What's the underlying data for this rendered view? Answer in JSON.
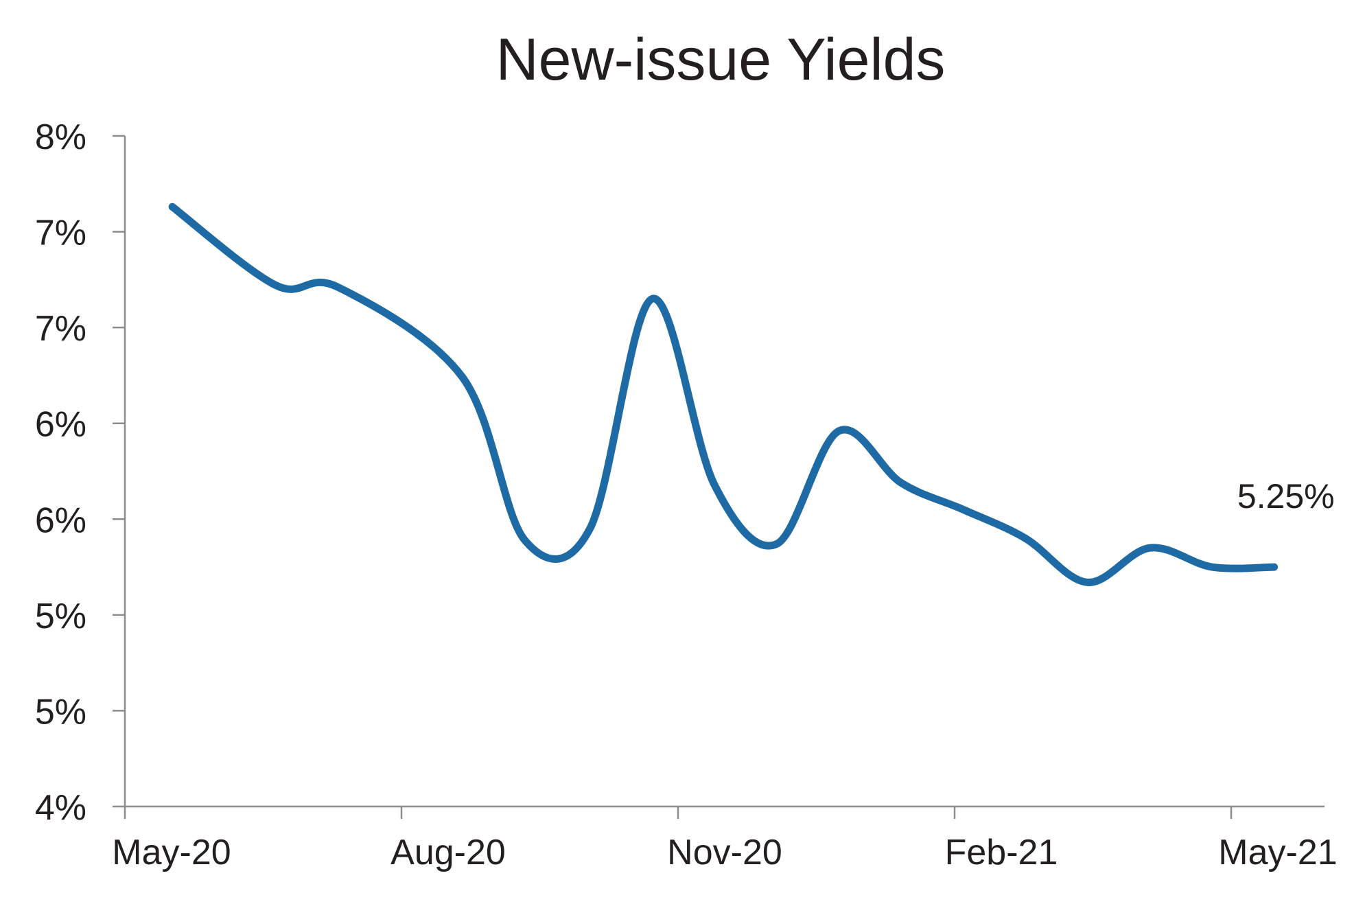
{
  "chart_data": {
    "type": "line",
    "title": "New-issue Yields",
    "xlabel": "",
    "ylabel": "",
    "y_tick_labels": [
      "8%",
      "7%",
      "7%",
      "6%",
      "6%",
      "5%",
      "5%",
      "4%"
    ],
    "ylim": [
      4.0,
      7.5
    ],
    "x_tick_labels": [
      "May-20",
      "Aug-20",
      "Nov-20",
      "Feb-21",
      "May-21"
    ],
    "xlim": [
      "2020-05-01",
      "2021-06-10"
    ],
    "grid": false,
    "legend": "none",
    "series": [
      {
        "color": "#1d6aa5",
        "x": [
          "2020-05-17",
          "2020-06-21",
          "2020-07-12",
          "2020-08-23",
          "2020-09-13",
          "2020-10-05",
          "2020-10-26",
          "2020-11-16",
          "2020-12-07",
          "2020-12-28",
          "2021-01-18",
          "2021-02-08",
          "2021-03-01",
          "2021-03-22",
          "2021-04-12",
          "2021-05-03",
          "2021-05-24"
        ],
        "values": [
          7.13,
          6.72,
          6.71,
          6.24,
          5.39,
          5.45,
          6.65,
          5.68,
          5.37,
          5.96,
          5.69,
          5.55,
          5.4,
          5.17,
          5.35,
          5.25,
          5.25
        ]
      }
    ],
    "annotations": [
      {
        "text": "5.25%"
      }
    ]
  }
}
